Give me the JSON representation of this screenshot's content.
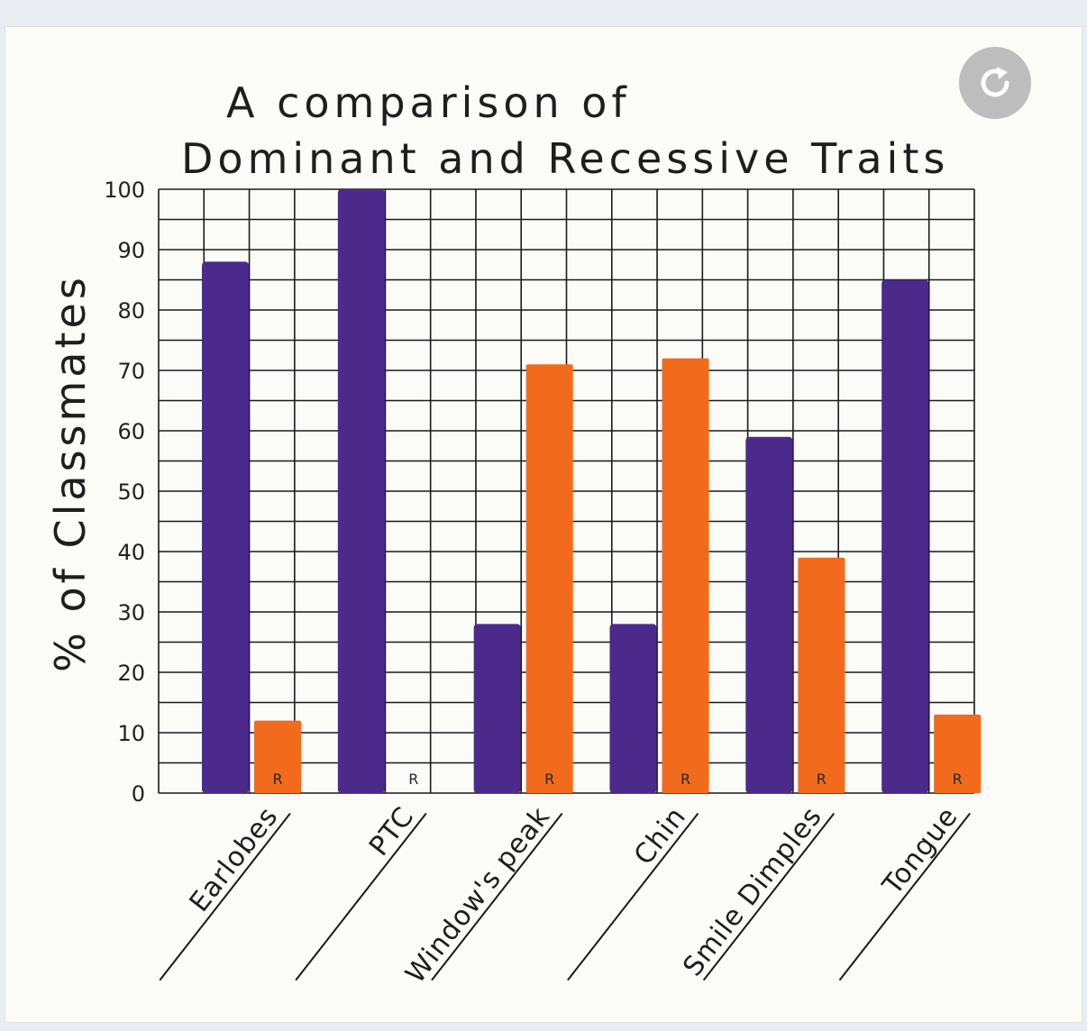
{
  "chart_data": {
    "type": "bar",
    "title_lines": [
      "A comparison of",
      "Dominant and Recessive Traits"
    ],
    "ylabel": "% of Classmates",
    "ylim": [
      0,
      100
    ],
    "yticks": [
      "0",
      "10",
      "20",
      "30",
      "40",
      "50",
      "60",
      "70",
      "80",
      "90",
      "100"
    ],
    "categories": [
      "Earlobes",
      "PTC",
      "Window's peak",
      "Chin",
      "Smile Dimples",
      "Tongue"
    ],
    "series": [
      {
        "key": "dominant",
        "values": [
          88,
          100,
          28,
          28,
          59,
          85
        ],
        "color": "#4b2a8c"
      },
      {
        "key": "recessive",
        "values": [
          12,
          0,
          71,
          72,
          39,
          13
        ],
        "color": "#f26a1b"
      }
    ],
    "recessive_marker": "R",
    "grid": true
  },
  "ui": {
    "reload_icon": "reload-icon"
  }
}
